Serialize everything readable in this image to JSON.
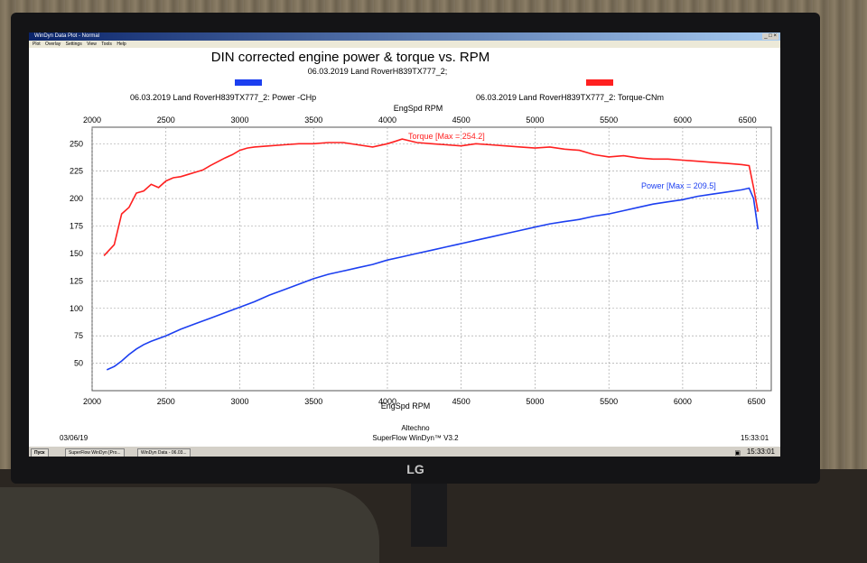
{
  "window": {
    "title": "WinDyn Data Plot - Normal",
    "controls": "_ □ ×",
    "menu": [
      "Plot",
      "Overlay",
      "Settings",
      "View",
      "Tools",
      "Help"
    ]
  },
  "chart_data": {
    "type": "line",
    "title": "DIN corrected engine power & torque vs. RPM",
    "subtitle": "06.03.2019 Land RoverH839TX777_2;",
    "xlabel": "EngSpd RPM",
    "xlim": [
      2000,
      6600
    ],
    "ylim": [
      25,
      265
    ],
    "grid": true,
    "xticks": [
      2000,
      2500,
      3000,
      3500,
      4000,
      4500,
      5000,
      5500,
      6000,
      6500
    ],
    "xticks_top": [
      2000,
      2500,
      3000,
      3500,
      4000,
      4500,
      5000,
      5500,
      6000,
      6500
    ],
    "yticks": [
      50,
      75,
      100,
      125,
      150,
      175,
      200,
      225,
      250
    ],
    "legend": [
      {
        "label": "06.03.2019 Land RoverH839TX777_2: Power -CHp",
        "color": "#1c3ff0"
      },
      {
        "label": "06.03.2019 Land RoverH839TX777_2: Torque-CNm",
        "color": "#ff2020"
      }
    ],
    "series": [
      {
        "name": "Torque",
        "annotation": "Torque [Max = 254.2]",
        "color": "#ff2020",
        "x": [
          2080,
          2150,
          2200,
          2250,
          2300,
          2350,
          2400,
          2450,
          2500,
          2550,
          2600,
          2650,
          2700,
          2750,
          2800,
          2900,
          2950,
          3000,
          3050,
          3100,
          3200,
          3300,
          3400,
          3500,
          3600,
          3700,
          3800,
          3900,
          4000,
          4050,
          4100,
          4200,
          4300,
          4400,
          4500,
          4600,
          4700,
          4800,
          4900,
          5000,
          5100,
          5200,
          5300,
          5400,
          5500,
          5600,
          5700,
          5800,
          5900,
          6000,
          6100,
          6200,
          6300,
          6400,
          6450,
          6480,
          6510
        ],
        "values": [
          148,
          158,
          186,
          192,
          205,
          207,
          213,
          210,
          216,
          219,
          220,
          222,
          224,
          226,
          230,
          237,
          240,
          244,
          246,
          247,
          248,
          249,
          250,
          250,
          251,
          251,
          249,
          247,
          250,
          252,
          254.2,
          251,
          250,
          249,
          248,
          250,
          249,
          248,
          247,
          246,
          247,
          245,
          244,
          240,
          238,
          239,
          237,
          236,
          236,
          235,
          234,
          233,
          232,
          231,
          230,
          210,
          188
        ]
      },
      {
        "name": "Power",
        "annotation": "Power  [Max = 209.5]",
        "color": "#1c3ff0",
        "x": [
          2100,
          2150,
          2200,
          2250,
          2300,
          2350,
          2400,
          2500,
          2600,
          2700,
          2800,
          2900,
          3000,
          3100,
          3200,
          3300,
          3400,
          3500,
          3600,
          3700,
          3800,
          3900,
          4000,
          4100,
          4200,
          4300,
          4400,
          4500,
          4600,
          4700,
          4800,
          4900,
          5000,
          5100,
          5200,
          5300,
          5400,
          5500,
          5600,
          5700,
          5800,
          5900,
          6000,
          6100,
          6200,
          6300,
          6400,
          6450,
          6480,
          6510
        ],
        "values": [
          44,
          47,
          52,
          58,
          63,
          67,
          70,
          75,
          81,
          86,
          91,
          96,
          101,
          106,
          112,
          117,
          122,
          127,
          131,
          134,
          137,
          140,
          144,
          147,
          150,
          153,
          156,
          159,
          162,
          165,
          168,
          171,
          174,
          177,
          179,
          181,
          184,
          186,
          189,
          192,
          195,
          197,
          199,
          202,
          204,
          206,
          208,
          209.5,
          200,
          172
        ]
      }
    ],
    "footer": {
      "left_date": "03/06/19",
      "company": "Altechno",
      "software": "SuperFlow WinDyn™ V3.2",
      "right_time": "15:33:01"
    }
  },
  "taskbar": {
    "start": "Пуск",
    "tasks": [
      "SuperFlow WinDyn [Pro...",
      "WinDyn Data - 06.03..."
    ],
    "clock": "15:33:01"
  },
  "monitor_brand": "LG"
}
